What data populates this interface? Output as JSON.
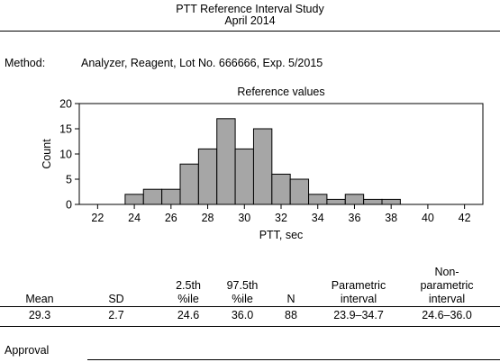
{
  "header": {
    "title": "PTT Reference Interval Study",
    "date": "April 2014"
  },
  "method": {
    "label": "Method:",
    "value": "Analyzer, Reagent, Lot No. 666666, Exp. 5/2015"
  },
  "chart_data": {
    "type": "bar",
    "title": "Reference values",
    "xlabel": "PTT, sec",
    "ylabel": "Count",
    "xlim": [
      21,
      43
    ],
    "ylim": [
      0,
      20
    ],
    "x_ticks": [
      22,
      24,
      26,
      28,
      30,
      32,
      34,
      36,
      38,
      40,
      42
    ],
    "y_ticks": [
      0,
      5,
      10,
      15,
      20
    ],
    "bin_width": 1,
    "bin_starts": [
      23.5,
      24.5,
      25.5,
      26.5,
      27.5,
      28.5,
      29.5,
      30.5,
      31.5,
      32.5,
      33.5,
      34.5,
      35.5,
      36.5,
      37.5
    ],
    "values": [
      2,
      3,
      3,
      8,
      11,
      17,
      11,
      15,
      6,
      5,
      2,
      1,
      2,
      1,
      1
    ],
    "grid": false,
    "bar_color": "#a6a6a6"
  },
  "stats": {
    "headers": [
      {
        "lines": [
          "Mean"
        ]
      },
      {
        "lines": [
          "SD"
        ]
      },
      {
        "lines": [
          "2.5th",
          "%ile"
        ]
      },
      {
        "lines": [
          "97.5th",
          "%ile"
        ]
      },
      {
        "lines": [
          "N"
        ]
      },
      {
        "lines": [
          "Parametric",
          "interval"
        ]
      },
      {
        "lines": [
          "Non-",
          "parametric",
          "interval"
        ]
      }
    ],
    "values": [
      "29.3",
      "2.7",
      "24.6",
      "36.0",
      "88",
      "23.9–34.7",
      "24.6–36.0"
    ]
  },
  "approval": {
    "label": "Approval"
  }
}
